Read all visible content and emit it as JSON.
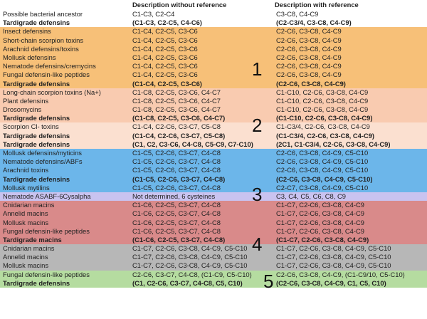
{
  "header": {
    "col1": "Description without reference",
    "col2": "Description with reference"
  },
  "rows": [
    {
      "name": "Possible bacterial ancestor",
      "without": "C1-C3, C2-C4",
      "with": "C3-C8, C4-C9",
      "bold": false,
      "bg": "white"
    },
    {
      "name": "Tardigrade defensins",
      "without": "(C1-C3, C2-C5, C4-C6)",
      "with": "(C2-C3/4, C3-C8, C4-C9)",
      "bold": true,
      "bg": "white"
    },
    {
      "name": "Insect defensins",
      "without": "C1-C4, C2-C5, C3-C6",
      "with": "C2-C6, C3-C8, C4-C9",
      "bold": false,
      "bg": "orange"
    },
    {
      "name": "Short-chain scorpion toxins",
      "without": "C1-C4, C2-C5, C3-C6",
      "with": "C2-C6, C3-C8, C4-C9",
      "bold": false,
      "bg": "orange"
    },
    {
      "name": "Arachnid defensins/toxins",
      "without": "C1-C4, C2-C5, C3-C6",
      "with": "C2-C6, C3-C8, C4-C9",
      "bold": false,
      "bg": "orange"
    },
    {
      "name": "Mollusk defensins",
      "without": "C1-C4, C2-C5, C3-C6",
      "with": "C2-C6, C3-C8, C4-C9",
      "bold": false,
      "bg": "orange"
    },
    {
      "name": "Nematode defensins/cremycins",
      "without": "C1-C4, C2-C5, C3-C6",
      "with": "C2-C6, C3-C8, C4-C9",
      "bold": false,
      "bg": "orange"
    },
    {
      "name": "Fungal defensin-like peptides",
      "without": "C1-C4, C2-C5, C3-C6",
      "with": "C2-C6, C3-C8, C4-C9",
      "bold": false,
      "bg": "orange"
    },
    {
      "name": "Tardigrade defensins",
      "without": "(C1-C4, C2-C5, C3-C6)",
      "with": "(C2-C6, C3-C8, C4-C9)",
      "bold": true,
      "bg": "orange"
    },
    {
      "name": "Long-chain scorpion toxins (Na+)",
      "without": "C1-C8, C2-C5, C3-C6, C4-C7",
      "with": "C1-C10, C2-C6, C3-C8, C4-C9",
      "bold": false,
      "bg": "peach"
    },
    {
      "name": "Plant defensins",
      "without": "C1-C8, C2-C5, C3-C6, C4-C7",
      "with": "C1-C10, C2-C6, C3-C8, C4-C9",
      "bold": false,
      "bg": "peach"
    },
    {
      "name": "Drosomycins",
      "without": "C1-C8, C2-C5, C3-C6, C4-C7",
      "with": "C1-C10, C2-C6, C3-C8, C4-C9",
      "bold": false,
      "bg": "peach"
    },
    {
      "name": "Tardigrade defensins",
      "without": "(C1-C8, C2-C5, C3-C6, C4-C7)",
      "with": "(C1-C10, C2-C6, C3-C8, C4-C9)",
      "bold": true,
      "bg": "peach"
    },
    {
      "name": "Scorpion Cl- toxins",
      "without": "C1-C4, C2-C6, C3-C7, C5-C8",
      "with": "C1-C3/4, C2-C6, C3-C8, C4-C9",
      "bold": false,
      "bg": "peach2"
    },
    {
      "name": "Tardigrade defensins",
      "without": "(C1-C4, C2-C6, C3-C7, C5-C8)",
      "with": "(C1-C3/4, C2-C6, C3-C8, C4-C9)",
      "bold": true,
      "bg": "peach2"
    },
    {
      "name": "Tardigrade defensins",
      "without": "(C1, C2, C3-C6, C4-C8, C5-C9, C7-C10)",
      "with": "(2C1, C1-C3/4, C2-C6, C3-C8, C4-C9)",
      "bold": true,
      "bg": "peach2"
    },
    {
      "name": "Mollusk defensins/myticins",
      "without": "C1-C5, C2-C6, C3-C7, C4-C8",
      "with": "C2-C6, C3-C8, C4-C9, C5-C10",
      "bold": false,
      "bg": "blue"
    },
    {
      "name": "Nematode defensins/ABFs",
      "without": "C1-C5, C2-C6, C3-C7, C4-C8",
      "with": "C2-C6, C3-C8, C4-C9, C5-C10",
      "bold": false,
      "bg": "blue"
    },
    {
      "name": "Arachnid toxins",
      "without": "C1-C5, C2-C6, C3-C7, C4-C8",
      "with": "C2-C6, C3-C8, C4-C9, C5-C10",
      "bold": false,
      "bg": "blue"
    },
    {
      "name": "Tardigrade defensins",
      "without": "(C1-C5, C2-C6, C3-C7, C4-C8)",
      "with": "(C2-C6, C3-C8, C4-C9, C5-C10)",
      "bold": true,
      "bg": "blue"
    },
    {
      "name": "Mollusk mytilins",
      "without": "C1-C5, C2-C6, C3-C7, C4-C8",
      "with": "C2-C7, C3-C8, C4-C9, C5-C10",
      "bold": false,
      "bg": "blue"
    },
    {
      "name": "Nematode ASABF-6Cysalpha",
      "without": "Not determined, 6 cysteines",
      "with": "C3, C4, C5, C6, C8, C9",
      "bold": false,
      "bg": "lav"
    },
    {
      "name": "Cnidarian macins",
      "without": "C1-C6, C2-C5, C3-C7, C4-C8",
      "with": "C1-C7, C2-C6, C3-C8, C4-C9",
      "bold": false,
      "bg": "rose"
    },
    {
      "name": "Annelid macins",
      "without": "C1-C6, C2-C5, C3-C7, C4-C8",
      "with": "C1-C7, C2-C6, C3-C8, C4-C9",
      "bold": false,
      "bg": "rose"
    },
    {
      "name": "Mollusk macins",
      "without": "C1-C6, C2-C5, C3-C7, C4-C8",
      "with": "C1-C7, C2-C6, C3-C8, C4-C9",
      "bold": false,
      "bg": "rose"
    },
    {
      "name": "Fungal defensin-like peptides",
      "without": "C1-C6, C2-C5, C3-C7, C4-C8",
      "with": "C1-C7, C2-C6, C3-C8, C4-C9",
      "bold": false,
      "bg": "rose"
    },
    {
      "name": "Tardigrade macins",
      "without": "(C1-C6, C2-C5, C3-C7, C4-C8)",
      "with": "(C1-C7, C2-C6, C3-C8, C4-C9)",
      "bold": true,
      "bg": "rose"
    },
    {
      "name": "Cnidarian macins",
      "without": "C1-C7, C2-C6, C3-C8, C4-C9, C5-C10",
      "with": "C1-C7, C2-C6, C3-C8, C4-C9, C5-C10",
      "bold": false,
      "bg": "gray"
    },
    {
      "name": "Annelid macins",
      "without": "C1-C7, C2-C6, C3-C8, C4-C9, C5-C10",
      "with": "C1-C7, C2-C6, C3-C8, C4-C9, C5-C10",
      "bold": false,
      "bg": "gray"
    },
    {
      "name": "Mollusk macins",
      "without": "C1-C7, C2-C6, C3-C8, C4-C9, C5-C10",
      "with": "C1-C7, C2-C6, C3-C8, C4-C9, C5-C10",
      "bold": false,
      "bg": "gray"
    },
    {
      "name": "Fungal defensin-like peptides",
      "without": "C2-C6, C3-C7, C4-C8, (C1-C9, C5-C10)",
      "with": "C2-C6, C3-C8, C4-C9, (C1-C9/10, C5-C10)",
      "bold": false,
      "bg": "green"
    },
    {
      "name": "Tardigrade defensins",
      "without": "(C1, C2-C6, C3-C7, C4-C8, C5, C10)",
      "with": "(C2-C6, C3-C8, C4-C9, C1, C5, C10)",
      "bold": true,
      "bg": "green"
    }
  ],
  "group_numbers": [
    "1",
    "2",
    "3",
    "4",
    "5"
  ],
  "colors": {
    "orange": "#f7c078",
    "peach": "#f9cbb0",
    "peach2": "#fbe0d0",
    "blue": "#6cb6ea",
    "lavender": "#c9c3f0",
    "rose": "#d98a8a",
    "gray": "#b7b7b7",
    "green": "#b5dca0"
  }
}
